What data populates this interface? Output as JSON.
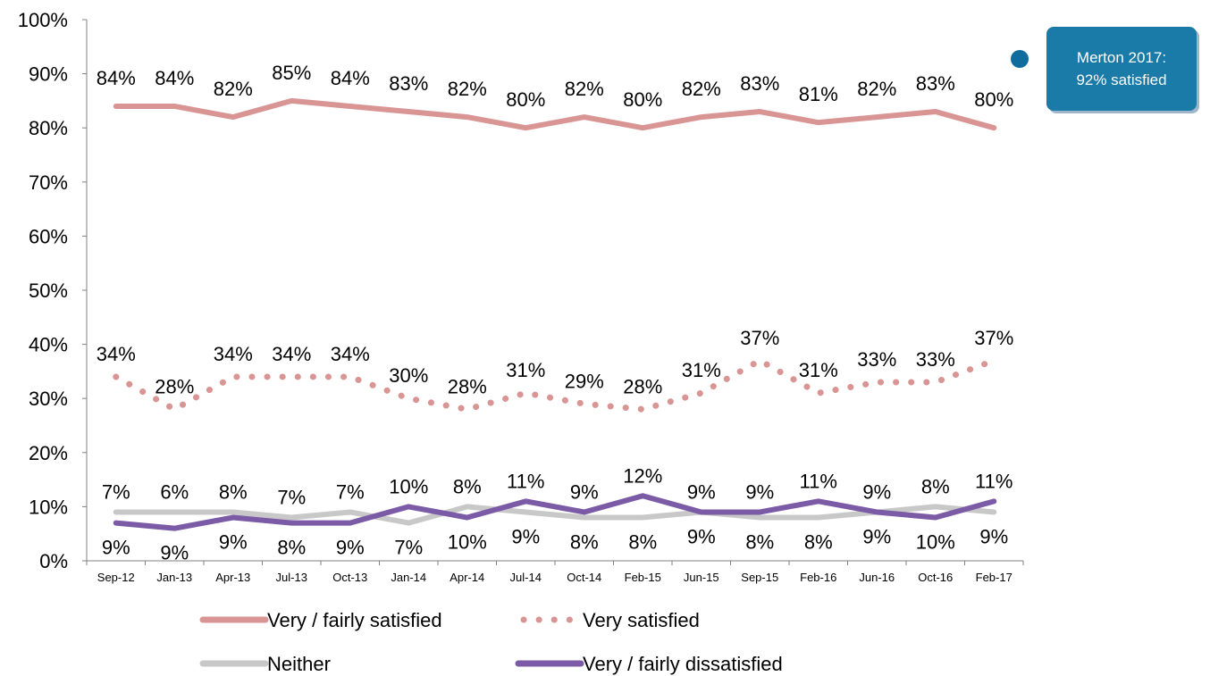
{
  "callout": {
    "line1": "Merton 2017:",
    "line2": "92% satisfied",
    "color": "#1a7aa8"
  },
  "chart_data": {
    "type": "line",
    "title": "",
    "xlabel": "",
    "ylabel": "",
    "ylim": [
      0,
      100
    ],
    "y_ticks": [
      "0%",
      "10%",
      "20%",
      "30%",
      "40%",
      "50%",
      "60%",
      "70%",
      "80%",
      "90%",
      "100%"
    ],
    "grid": false,
    "legend_position": "bottom",
    "categories": [
      "Sep-12",
      "Jan-13",
      "Apr-13",
      "Jul-13",
      "Oct-13",
      "Jan-14",
      "Apr-14",
      "Jul-14",
      "Oct-14",
      "Feb-15",
      "Jun-15",
      "Sep-15",
      "Feb-16",
      "Jun-16",
      "Oct-16",
      "Feb-17"
    ],
    "series": [
      {
        "name": "Very / fairly satisfied",
        "style": "solid",
        "color": "#d99594",
        "values": [
          84,
          84,
          82,
          85,
          84,
          83,
          82,
          80,
          82,
          80,
          82,
          83,
          81,
          82,
          83,
          80
        ],
        "labels": [
          "84%",
          "84%",
          "82%",
          "85%",
          "84%",
          "83%",
          "82%",
          "80%",
          "82%",
          "80%",
          "82%",
          "83%",
          "81%",
          "82%",
          "83%",
          "80%"
        ]
      },
      {
        "name": "Very satisfied",
        "style": "dotted",
        "color": "#d99594",
        "values": [
          34,
          28,
          34,
          34,
          34,
          30,
          28,
          31,
          29,
          28,
          31,
          37,
          31,
          33,
          33,
          37
        ],
        "labels": [
          "34%",
          "28%",
          "34%",
          "34%",
          "34%",
          "30%",
          "28%",
          "31%",
          "29%",
          "28%",
          "31%",
          "37%",
          "31%",
          "33%",
          "33%",
          "37%"
        ]
      },
      {
        "name": "Neither",
        "style": "solid",
        "color": "#c8c8c8",
        "values": [
          9,
          9,
          9,
          8,
          9,
          7,
          10,
          9,
          8,
          8,
          9,
          8,
          8,
          9,
          10,
          9
        ],
        "labels": [
          "9%",
          "9%",
          "9%",
          "8%",
          "9%",
          "7%",
          "10%",
          "9%",
          "8%",
          "8%",
          "9%",
          "8%",
          "8%",
          "9%",
          "10%",
          "9%"
        ]
      },
      {
        "name": "Very / fairly dissatisfied",
        "style": "solid",
        "color": "#7b5aa6",
        "values": [
          7,
          6,
          8,
          7,
          7,
          10,
          8,
          11,
          9,
          12,
          9,
          9,
          11,
          9,
          8,
          11
        ],
        "labels": [
          "7%",
          "6%",
          "8%",
          "7%",
          "7%",
          "10%",
          "8%",
          "11%",
          "9%",
          "12%",
          "9%",
          "9%",
          "11%",
          "9%",
          "8%",
          "11%"
        ]
      }
    ]
  }
}
